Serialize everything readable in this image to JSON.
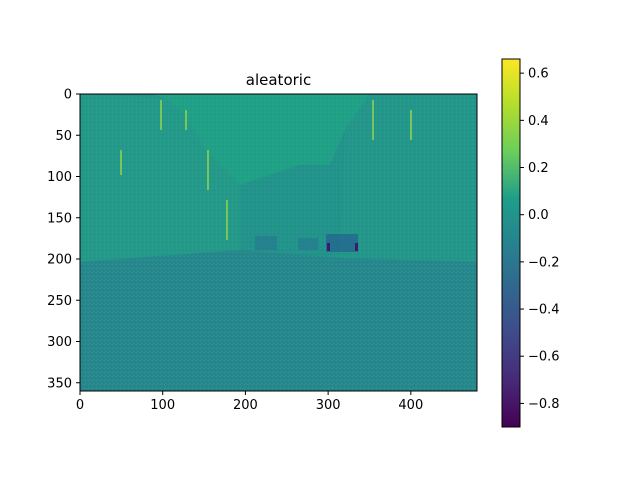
{
  "chart_data": {
    "type": "heatmap",
    "title": "aleatoric",
    "xlabel": "",
    "ylabel": "",
    "x_range": [
      0,
      480
    ],
    "y_range": [
      0,
      360
    ],
    "x_ticks": [
      0,
      100,
      200,
      300,
      400
    ],
    "y_ticks": [
      0,
      50,
      100,
      150,
      200,
      250,
      300,
      350
    ],
    "colormap": "viridis",
    "dominant_value": 0.0,
    "colorbar": {
      "min": -0.9,
      "max": 0.66,
      "ticks": [
        0.6,
        0.4,
        0.2,
        0.0,
        -0.2,
        -0.4,
        -0.6,
        -0.8
      ],
      "tick_labels": [
        "0.6",
        "0.4",
        "0.2",
        "0.0",
        "−0.2",
        "−0.4",
        "−0.6",
        "−0.8"
      ]
    },
    "colors": {
      "low": "#440154",
      "mid": "#21918c",
      "high": "#fde725",
      "sky": "#1fa187",
      "street": "#25878d"
    }
  }
}
